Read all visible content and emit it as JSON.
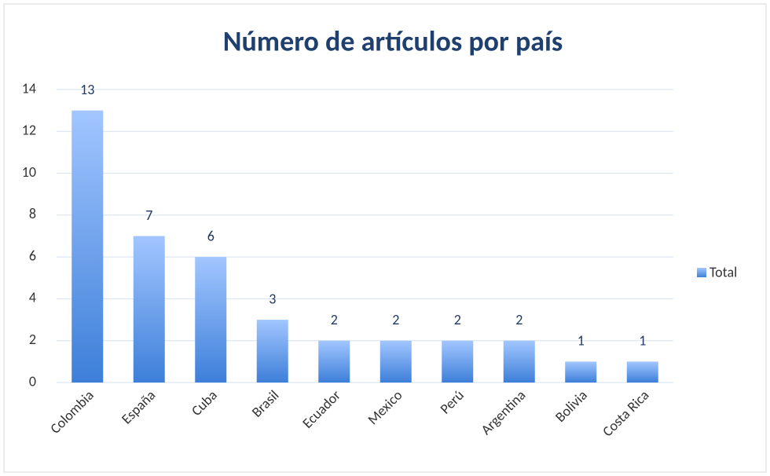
{
  "chart_data": {
    "type": "bar",
    "title": "Número de artículos por país",
    "categories": [
      "Colombia",
      "España",
      "Cuba",
      "Brasil",
      "Ecuador",
      "Mexico",
      "Perú",
      "Argentina",
      "Bolivia",
      "Costa Rica"
    ],
    "series": [
      {
        "name": "Total",
        "color": "#3d7fd9",
        "values": [
          13,
          7,
          6,
          3,
          2,
          2,
          2,
          2,
          1,
          1
        ]
      }
    ],
    "ylim": [
      0,
      14
    ],
    "yticks": [
      0,
      2,
      4,
      6,
      8,
      10,
      12,
      14
    ],
    "grid": true,
    "legend": "right",
    "data_labels": true
  }
}
